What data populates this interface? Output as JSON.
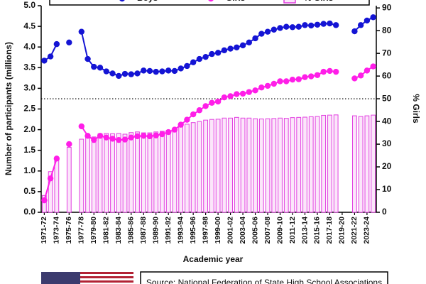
{
  "chart_data": {
    "type": "line",
    "x_label": "Academic year",
    "y_label": "Number of participants (millions)",
    "y2_label": "% Girls",
    "source": "Source: National Federation of State High School Associations",
    "legend": "top",
    "categories": [
      "1971-72",
      null,
      "1973-74",
      null,
      "1975-76",
      null,
      "1977-78",
      null,
      "1979-80",
      null,
      "1981-82",
      null,
      "1983-84",
      null,
      "1985-86",
      null,
      "1987-88",
      null,
      "1989-90",
      null,
      "1991-92",
      null,
      "1993-94",
      null,
      "1995-96",
      null,
      "1997-98",
      null,
      "1999-00",
      null,
      "2001-02",
      null,
      "2003-04",
      null,
      "2005-06",
      null,
      "2007-08",
      null,
      "2009-10",
      null,
      "2011-12",
      null,
      "2013-14",
      null,
      "2015-16",
      null,
      "2017-18",
      null,
      "2019-20",
      null,
      "2021-22",
      null,
      "2023-24",
      null
    ],
    "series": [
      {
        "name": "% Girls",
        "type": "bar",
        "axis": "y2",
        "color": "#e23ee0",
        "fill": "#fbe6fa",
        "values": [
          7.4,
          17.9,
          24.2,
          null,
          28.6,
          null,
          32.2,
          33.3,
          33.2,
          34.6,
          34.7,
          34.6,
          34.7,
          34.4,
          35.1,
          35.4,
          35.0,
          35.0,
          35.4,
          35.7,
          36.1,
          36.9,
          37.9,
          38.8,
          39.5,
          40.0,
          40.6,
          40.9,
          41.0,
          41.5,
          41.5,
          41.8,
          41.5,
          41.5,
          41.2,
          41.1,
          41.2,
          41.3,
          41.5,
          41.4,
          41.7,
          41.8,
          41.9,
          42.1,
          42.2,
          42.7,
          42.8,
          42.9,
          null,
          null,
          42.5,
          42.2,
          42.5,
          42.8
        ]
      },
      {
        "name": "Boys",
        "type": "line",
        "color": "#1414d4",
        "values": [
          3.67,
          3.77,
          4.07,
          null,
          4.11,
          null,
          4.37,
          3.71,
          3.52,
          3.5,
          3.41,
          3.36,
          3.3,
          3.35,
          3.34,
          3.36,
          3.43,
          3.42,
          3.4,
          3.41,
          3.43,
          3.42,
          3.48,
          3.54,
          3.63,
          3.71,
          3.76,
          3.83,
          3.86,
          3.92,
          3.96,
          3.99,
          4.04,
          4.11,
          4.21,
          4.32,
          4.37,
          4.42,
          4.46,
          4.49,
          4.48,
          4.49,
          4.53,
          4.52,
          4.54,
          4.56,
          4.57,
          4.53,
          null,
          null,
          4.38,
          4.53,
          4.64,
          4.72
        ]
      },
      {
        "name": "Girls",
        "type": "line",
        "color": "#ff1ee8",
        "values": [
          0.29,
          0.82,
          1.3,
          null,
          1.65,
          null,
          2.08,
          1.85,
          1.75,
          1.85,
          1.81,
          1.78,
          1.75,
          1.76,
          1.81,
          1.84,
          1.85,
          1.84,
          1.86,
          1.89,
          1.94,
          2.0,
          2.12,
          2.24,
          2.37,
          2.47,
          2.57,
          2.65,
          2.68,
          2.78,
          2.81,
          2.86,
          2.87,
          2.91,
          2.95,
          3.02,
          3.06,
          3.11,
          3.17,
          3.17,
          3.21,
          3.22,
          3.27,
          3.29,
          3.32,
          3.4,
          3.42,
          3.4,
          null,
          null,
          3.24,
          3.31,
          3.43,
          3.53
        ]
      }
    ],
    "ylim": [
      0,
      5
    ],
    "yticks": [
      {
        "value": 0,
        "label": "0.0"
      },
      0.5,
      {
        "value": 1,
        "label": "1.0"
      },
      1.5,
      {
        "value": 2,
        "label": "2.0"
      },
      2.5,
      {
        "value": 3,
        "label": "3.0"
      },
      3.5,
      {
        "value": 4,
        "label": "4.0"
      },
      4.5,
      {
        "value": 5,
        "label": "5.0"
      }
    ],
    "y2lim": [
      0,
      91
    ],
    "y2ticks": [
      0,
      10,
      20,
      30,
      40,
      50,
      60,
      70,
      80,
      90
    ],
    "reference_line": {
      "axis": "y2",
      "value": 50
    }
  }
}
